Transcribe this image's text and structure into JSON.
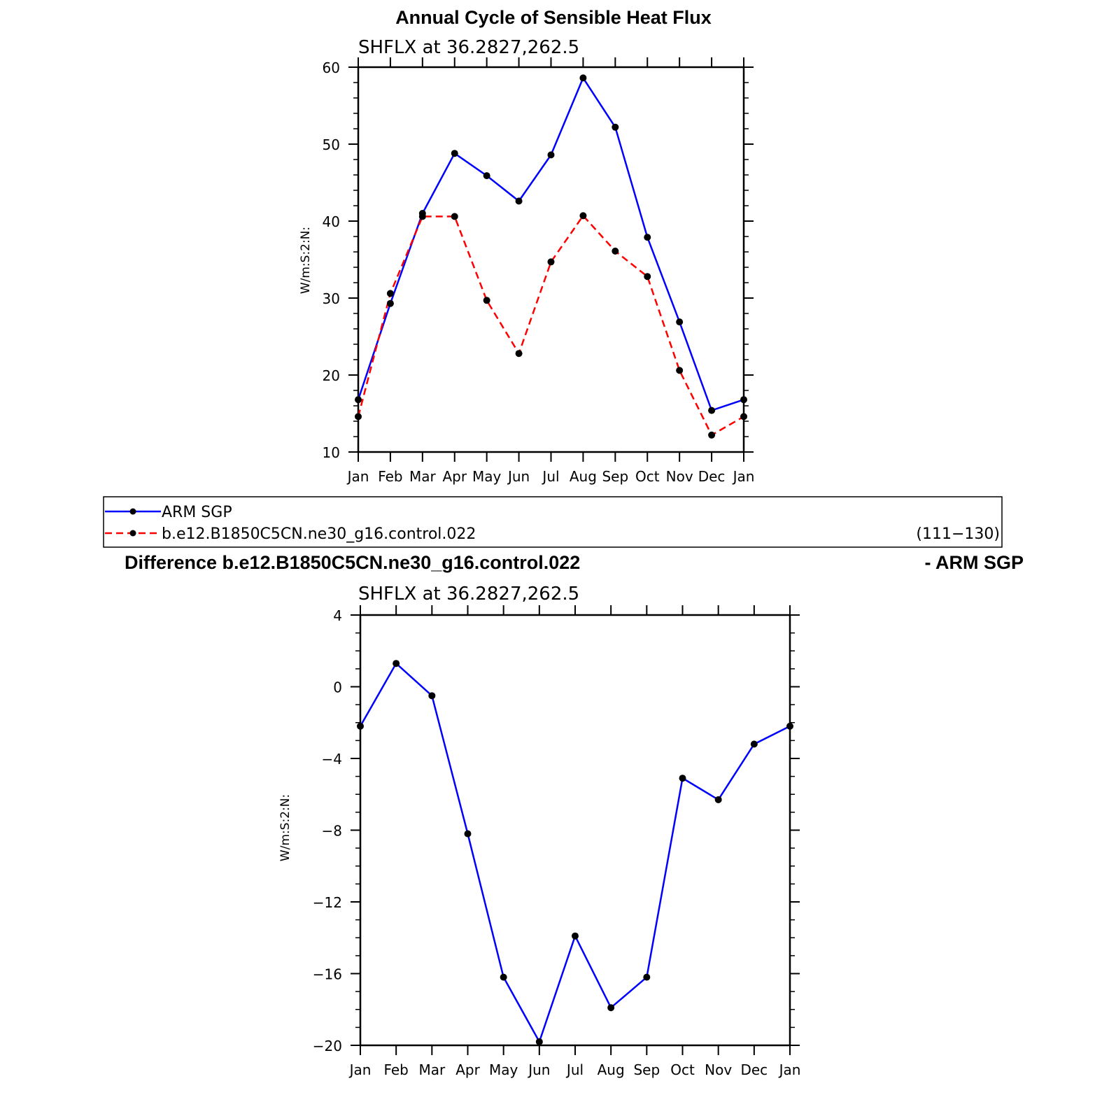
{
  "chart_data": [
    {
      "type": "line",
      "title": "Annual Cycle of Sensible Heat Flux",
      "subtitle": "SHFLX  at  36.2827,262.5",
      "ylabel": "W/m:S:2:N:",
      "categories": [
        "Jan",
        "Feb",
        "Mar",
        "Apr",
        "May",
        "Jun",
        "Jul",
        "Aug",
        "Sep",
        "Oct",
        "Nov",
        "Dec",
        "Jan"
      ],
      "ylim": [
        10,
        60
      ],
      "yticks": [
        "10",
        "20",
        "30",
        "40",
        "50",
        "60"
      ],
      "series": [
        {
          "name": "ARM SGP",
          "color": "#0000ff",
          "dash": "solid",
          "values": [
            16.8,
            29.3,
            41.0,
            48.8,
            45.9,
            42.6,
            48.6,
            58.6,
            52.2,
            37.9,
            26.9,
            15.4,
            16.8
          ]
        },
        {
          "name": "b.e12.B1850C5CN.ne30_g16.control.022",
          "color": "#ff0000",
          "dash": "dashed",
          "values": [
            14.6,
            30.6,
            40.6,
            40.6,
            29.7,
            22.8,
            34.7,
            40.7,
            36.1,
            32.8,
            20.6,
            12.2,
            14.6
          ]
        }
      ],
      "legend": {
        "placement": "bottom",
        "items": [
          "ARM SGP",
          "b.e12.B1850C5CN.ne30_g16.control.022"
        ],
        "years": "(111−130)"
      }
    },
    {
      "type": "line",
      "title_left": "Difference b.e12.B1850C5CN.ne30_g16.control.022",
      "title_right": "- ARM SGP",
      "subtitle": "SHFLX  at  36.2827,262.5",
      "ylabel": "W/m:S:2:N:",
      "categories": [
        "Jan",
        "Feb",
        "Mar",
        "Apr",
        "May",
        "Jun",
        "Jul",
        "Aug",
        "Sep",
        "Oct",
        "Nov",
        "Dec",
        "Jan"
      ],
      "ylim": [
        -20,
        4
      ],
      "yticks": [
        "−20",
        "−16",
        "−12",
        "−8",
        "−4",
        "0",
        "4"
      ],
      "series": [
        {
          "color": "#0000ff",
          "dash": "solid",
          "values": [
            -2.2,
            1.3,
            -0.5,
            -8.2,
            -16.2,
            -19.8,
            -13.9,
            -17.9,
            -16.2,
            -5.1,
            -6.3,
            -3.2,
            -2.2
          ]
        }
      ]
    }
  ]
}
